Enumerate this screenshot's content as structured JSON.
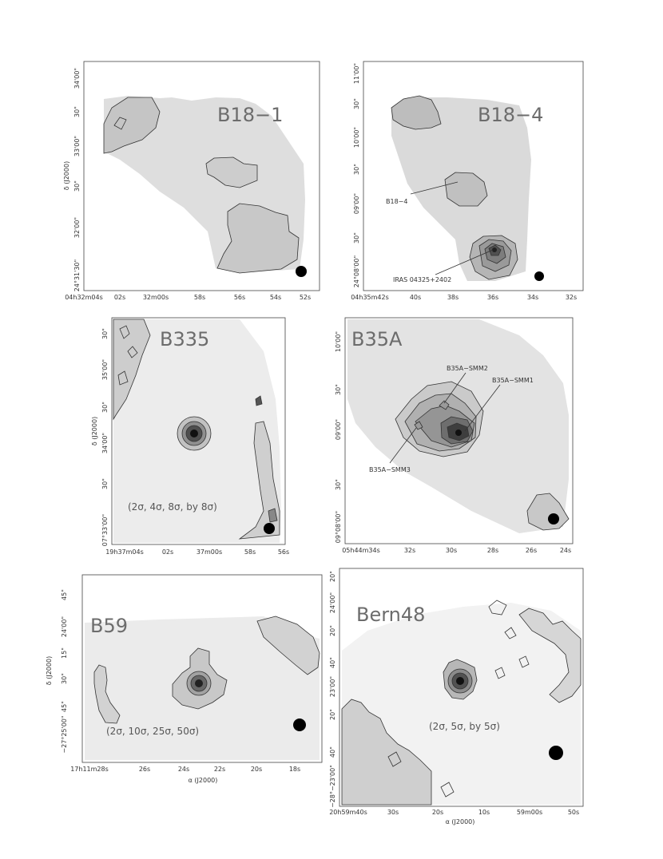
{
  "panels": [
    {
      "title": "B18−1",
      "ylabel": "δ (J2000)",
      "xlabel": "",
      "xticks": [
        "04h32m04s",
        "02s",
        "32m00s",
        "58s",
        "56s",
        "54s",
        "52s"
      ],
      "yticks": [
        "24°31'30\"",
        "32'00\"",
        "30\"",
        "33'00\"",
        "30\"",
        "34'00\""
      ],
      "annotations": [],
      "note": ""
    },
    {
      "title": "B18−4",
      "ylabel": "",
      "xlabel": "",
      "xticks": [
        "04h35m42s",
        "40s",
        "38s",
        "36s",
        "34s",
        "32s"
      ],
      "yticks": [
        "24°08'00\"",
        "30\"",
        "09'00\"",
        "30\"",
        "10'00\"",
        "30\"",
        "11'00\""
      ],
      "annotations": [
        "B18−4",
        "IRAS 04325+2402"
      ],
      "note": ""
    },
    {
      "title": "B335",
      "ylabel": "δ (J2000)",
      "xlabel": "",
      "xticks": [
        "19h37m04s",
        "02s",
        "37m00s",
        "58s",
        "56s"
      ],
      "yticks": [
        "07°33'00\"",
        "30\"",
        "34'00\"",
        "30\"",
        "35'00\"",
        "30\""
      ],
      "annotations": [],
      "note": "(2σ, 4σ, 8σ, by 8σ)"
    },
    {
      "title": "B35A",
      "ylabel": "",
      "xlabel": "",
      "xticks": [
        "05h44m34s",
        "32s",
        "30s",
        "28s",
        "26s",
        "24s"
      ],
      "yticks": [
        "09°08'00\"",
        "30\"",
        "09'00\"",
        "30\"",
        "10'00\""
      ],
      "annotations": [
        "B35A−SMM2",
        "B35A−SMM1",
        "B35A−SMM3"
      ],
      "note": ""
    },
    {
      "title": "B59",
      "ylabel": "δ (J2000)",
      "xlabel": "α (J2000)",
      "xticks": [
        "17h11m28s",
        "26s",
        "24s",
        "22s",
        "20s",
        "18s"
      ],
      "yticks": [
        "−27°25'00\"",
        "45\"",
        "30\"",
        "15\"",
        "24'00\"",
        "45\""
      ],
      "annotations": [],
      "note": "(2σ, 10σ, 25σ, 50σ)"
    },
    {
      "title": "Bern48",
      "ylabel": "",
      "xlabel": "α (J2000)",
      "xticks": [
        "20h59m40s",
        "30s",
        "20s",
        "10s",
        "59m00s",
        "50s"
      ],
      "yticks": [
        "−28°−23'00\"",
        "40\"",
        "20\"",
        "23'00\"",
        "40\"",
        "20\"",
        "24'00\"",
        "20\""
      ],
      "annotations": [],
      "note": "(2σ, 5σ, by 5σ)"
    }
  ]
}
